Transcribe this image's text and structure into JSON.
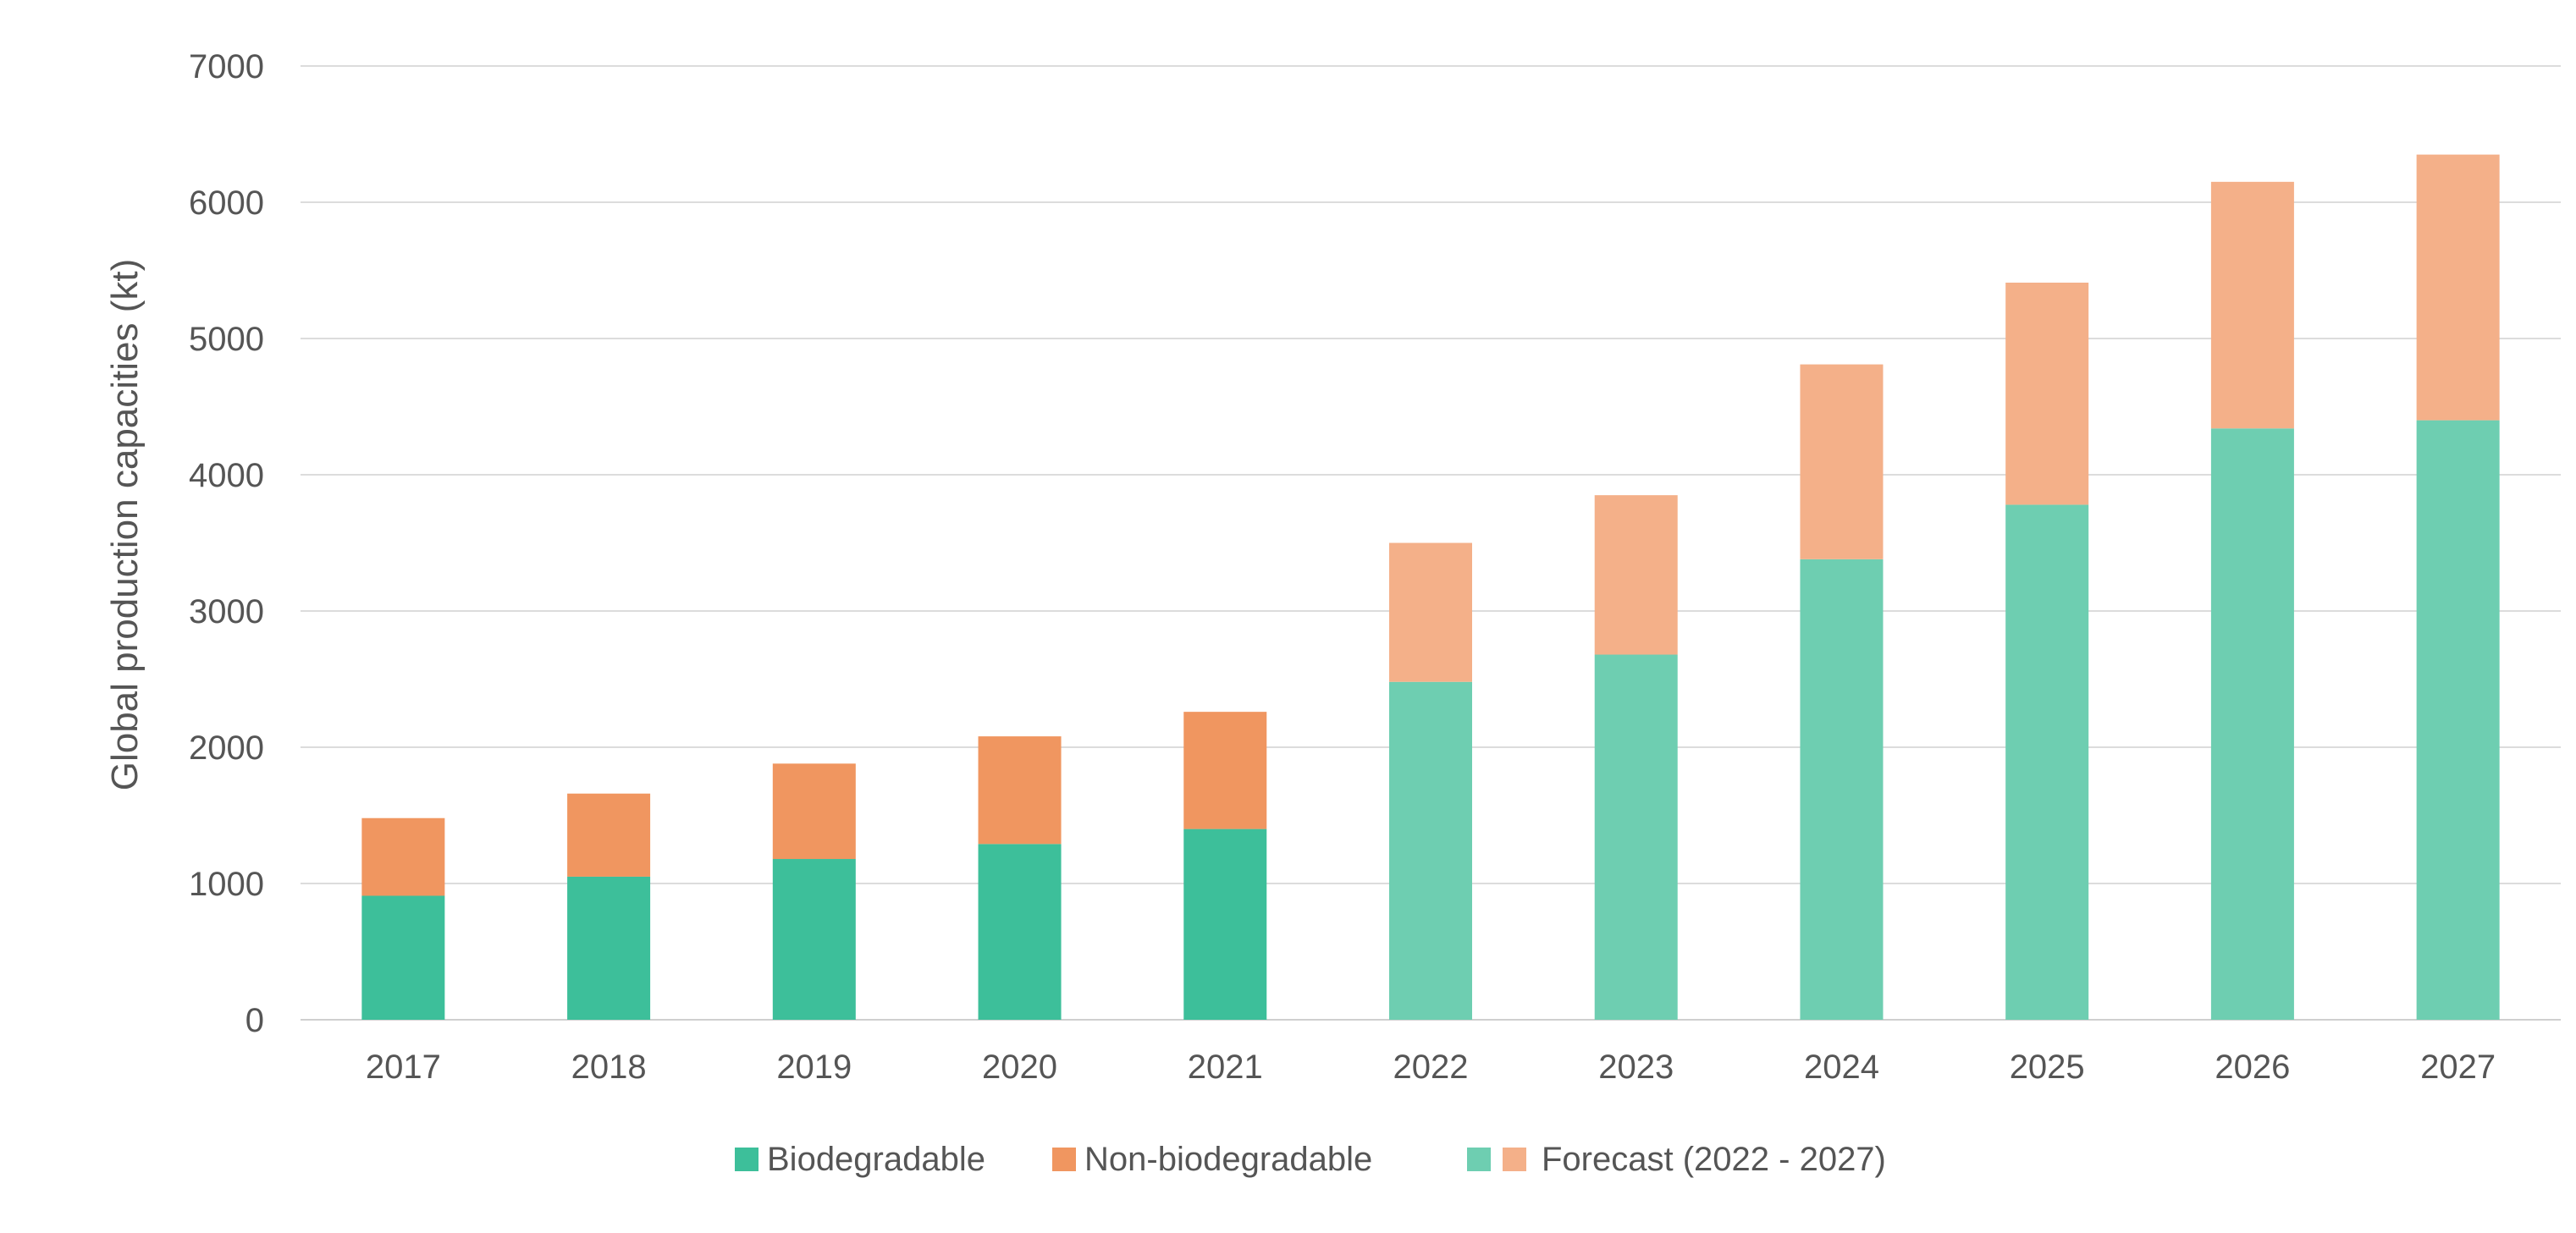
{
  "chart_data": {
    "type": "bar",
    "stacked": true,
    "ylabel": "Global production capacities (kt)",
    "ylim": [
      0,
      7000
    ],
    "yticks": [
      0,
      1000,
      2000,
      3000,
      4000,
      5000,
      6000,
      7000
    ],
    "grid": true,
    "legend_position": "bottom",
    "categories": [
      "2017",
      "2018",
      "2019",
      "2020",
      "2021",
      "2022",
      "2023",
      "2024",
      "2025",
      "2026",
      "2027"
    ],
    "forecast_categories": [
      "2022",
      "2023",
      "2024",
      "2025",
      "2026",
      "2027"
    ],
    "series": [
      {
        "name": "Biodegradable",
        "color": "#3DBF9A",
        "forecast_color": "#6ECEB1",
        "values": [
          910,
          1050,
          1180,
          1290,
          1400,
          2480,
          2680,
          3380,
          3780,
          4340,
          4400
        ]
      },
      {
        "name": "Non-biodegradable",
        "color": "#F09660",
        "forecast_color": "#F4B089",
        "values": [
          570,
          610,
          700,
          790,
          860,
          1020,
          1170,
          1430,
          1630,
          1810,
          1950
        ]
      }
    ],
    "legend": {
      "biodegradable": "Biodegradable",
      "non_biodegradable": "Non-biodegradable",
      "forecast": "Forecast (2022 - 2027)"
    }
  }
}
